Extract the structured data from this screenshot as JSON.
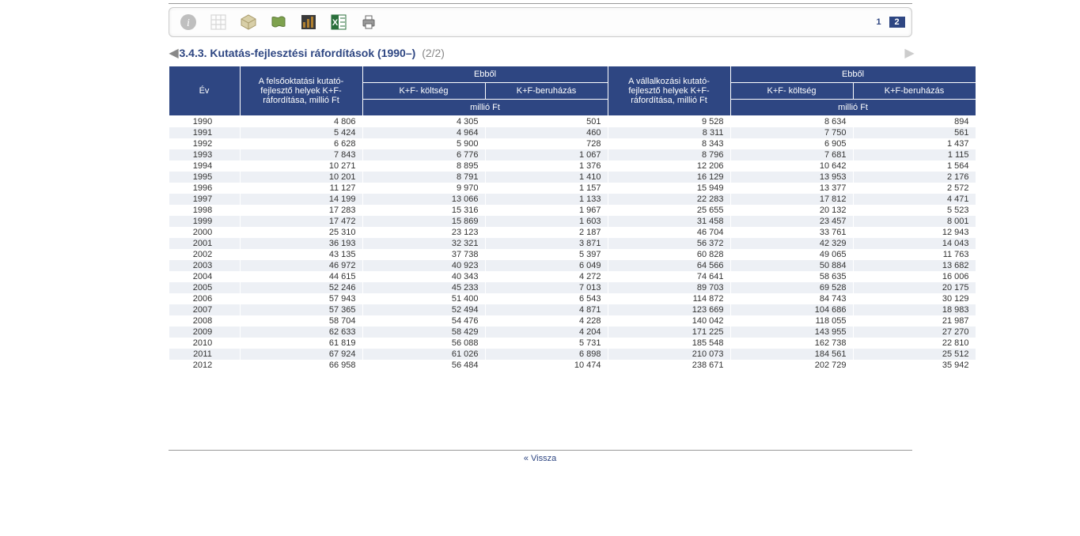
{
  "pager": {
    "pages": [
      "1",
      "2"
    ],
    "active_index": 1
  },
  "title": {
    "main": "3.4.3. Kutatás-fejlesztési ráfordítások (1990–)",
    "sub": "(2/2)"
  },
  "footer": {
    "back": "« Vissza"
  },
  "header": {
    "year": "Év",
    "group_a": "A felsőoktatási kutató-fejlesztő helyek K+F-ráfordítása, millió Ft",
    "group_b": "A vállalkozási kutató-fejlesztő helyek K+F-ráfordítása, millió Ft",
    "ebbol": "Ebből",
    "kf_koltseg": "K+F- költség",
    "kf_beruhazas": "K+F-beruházás",
    "unit": "millió Ft"
  },
  "rows": [
    {
      "year": "1990",
      "a": "4 806",
      "a1": "4 305",
      "a2": "501",
      "b": "9 528",
      "b1": "8 634",
      "b2": "894"
    },
    {
      "year": "1991",
      "a": "5 424",
      "a1": "4 964",
      "a2": "460",
      "b": "8 311",
      "b1": "7 750",
      "b2": "561"
    },
    {
      "year": "1992",
      "a": "6 628",
      "a1": "5 900",
      "a2": "728",
      "b": "8 343",
      "b1": "6 905",
      "b2": "1 437"
    },
    {
      "year": "1993",
      "a": "7 843",
      "a1": "6 776",
      "a2": "1 067",
      "b": "8 796",
      "b1": "7 681",
      "b2": "1 115"
    },
    {
      "year": "1994",
      "a": "10 271",
      "a1": "8 895",
      "a2": "1 376",
      "b": "12 206",
      "b1": "10 642",
      "b2": "1 564"
    },
    {
      "year": "1995",
      "a": "10 201",
      "a1": "8 791",
      "a2": "1 410",
      "b": "16 129",
      "b1": "13 953",
      "b2": "2 176"
    },
    {
      "year": "1996",
      "a": "11 127",
      "a1": "9 970",
      "a2": "1 157",
      "b": "15 949",
      "b1": "13 377",
      "b2": "2 572"
    },
    {
      "year": "1997",
      "a": "14 199",
      "a1": "13 066",
      "a2": "1 133",
      "b": "22 283",
      "b1": "17 812",
      "b2": "4 471"
    },
    {
      "year": "1998",
      "a": "17 283",
      "a1": "15 316",
      "a2": "1 967",
      "b": "25 655",
      "b1": "20 132",
      "b2": "5 523"
    },
    {
      "year": "1999",
      "a": "17 472",
      "a1": "15 869",
      "a2": "1 603",
      "b": "31 458",
      "b1": "23 457",
      "b2": "8 001"
    },
    {
      "year": "2000",
      "a": "25 310",
      "a1": "23 123",
      "a2": "2 187",
      "b": "46 704",
      "b1": "33 761",
      "b2": "12 943"
    },
    {
      "year": "2001",
      "a": "36 193",
      "a1": "32 321",
      "a2": "3 871",
      "b": "56 372",
      "b1": "42 329",
      "b2": "14 043"
    },
    {
      "year": "2002",
      "a": "43 135",
      "a1": "37 738",
      "a2": "5 397",
      "b": "60 828",
      "b1": "49 065",
      "b2": "11 763"
    },
    {
      "year": "2003",
      "a": "46 972",
      "a1": "40 923",
      "a2": "6 049",
      "b": "64 566",
      "b1": "50 884",
      "b2": "13 682"
    },
    {
      "year": "2004",
      "a": "44 615",
      "a1": "40 343",
      "a2": "4 272",
      "b": "74 641",
      "b1": "58 635",
      "b2": "16 006"
    },
    {
      "year": "2005",
      "a": "52 246",
      "a1": "45 233",
      "a2": "7 013",
      "b": "89 703",
      "b1": "69 528",
      "b2": "20 175"
    },
    {
      "year": "2006",
      "a": "57 943",
      "a1": "51 400",
      "a2": "6 543",
      "b": "114 872",
      "b1": "84 743",
      "b2": "30 129"
    },
    {
      "year": "2007",
      "a": "57 365",
      "a1": "52 494",
      "a2": "4 871",
      "b": "123 669",
      "b1": "104 686",
      "b2": "18 983"
    },
    {
      "year": "2008",
      "a": "58 704",
      "a1": "54 476",
      "a2": "4 228",
      "b": "140 042",
      "b1": "118 055",
      "b2": "21 987"
    },
    {
      "year": "2009",
      "a": "62 633",
      "a1": "58 429",
      "a2": "4 204",
      "b": "171 225",
      "b1": "143 955",
      "b2": "27 270"
    },
    {
      "year": "2010",
      "a": "61 819",
      "a1": "56 088",
      "a2": "5 731",
      "b": "185 548",
      "b1": "162 738",
      "b2": "22 810"
    },
    {
      "year": "2011",
      "a": "67 924",
      "a1": "61 026",
      "a2": "6 898",
      "b": "210 073",
      "b1": "184 561",
      "b2": "25 512"
    },
    {
      "year": "2012",
      "a": "66 958",
      "a1": "56 484",
      "a2": "10 474",
      "b": "238 671",
      "b1": "202 729",
      "b2": "35 942"
    }
  ],
  "colors": {
    "header_bg": "#2e4682",
    "header_fg": "#ffffff",
    "row_even": "#edf0f5",
    "row_odd": "#ffffff",
    "title_fg": "#2e4682"
  }
}
